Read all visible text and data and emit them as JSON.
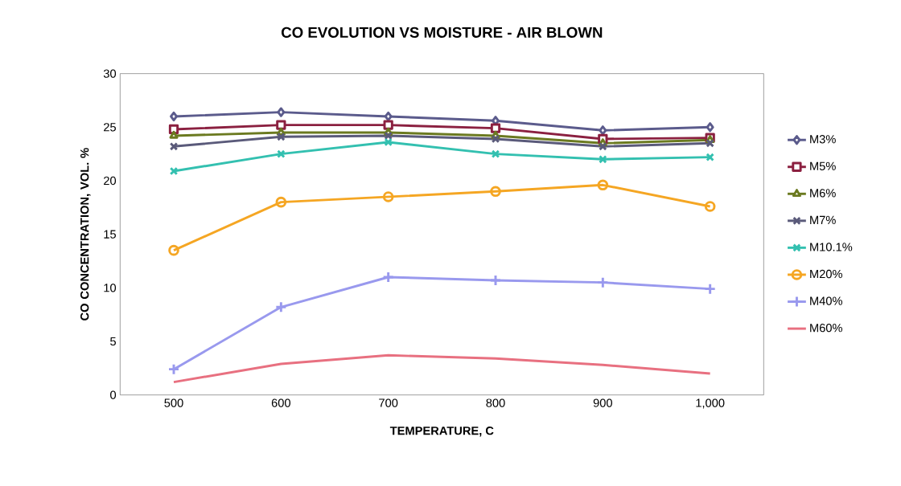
{
  "chart_data": {
    "type": "line",
    "title": "CO EVOLUTION VS MOISTURE - AIR BLOWN",
    "xlabel": "TEMPERATURE, C",
    "ylabel": "CO CONCENTRATION, VOL. %",
    "categories": [
      "500",
      "600",
      "700",
      "800",
      "900",
      "1,000"
    ],
    "ylim": [
      0,
      30
    ],
    "yticks": [
      0,
      5,
      10,
      15,
      20,
      25,
      30
    ],
    "grid": false,
    "legend": "right",
    "line_style": "solid",
    "series": [
      {
        "name": "M3%",
        "color": "#5b5b8c",
        "marker": "diamond",
        "values": [
          26.0,
          26.4,
          26.0,
          25.6,
          24.7,
          25.0
        ]
      },
      {
        "name": "M5%",
        "color": "#8b2040",
        "marker": "square",
        "values": [
          24.8,
          25.2,
          25.2,
          24.9,
          23.9,
          24.0
        ]
      },
      {
        "name": "M6%",
        "color": "#6b7a20",
        "marker": "triangle",
        "values": [
          24.2,
          24.5,
          24.5,
          24.2,
          23.5,
          23.8
        ]
      },
      {
        "name": "M7%",
        "color": "#5a5a7a",
        "marker": "cross",
        "values": [
          23.2,
          24.1,
          24.2,
          23.9,
          23.2,
          23.5
        ]
      },
      {
        "name": "M10.1%",
        "color": "#33c0b0",
        "marker": "cross",
        "values": [
          20.9,
          22.5,
          23.6,
          22.5,
          22.0,
          22.2
        ]
      },
      {
        "name": "M20%",
        "color": "#f5a623",
        "marker": "circle",
        "values": [
          13.5,
          18.0,
          18.5,
          19.0,
          19.6,
          17.6
        ]
      },
      {
        "name": "M40%",
        "color": "#9999ee",
        "marker": "plus",
        "values": [
          2.4,
          8.2,
          11.0,
          10.7,
          10.5,
          9.9
        ]
      },
      {
        "name": "M60%",
        "color": "#e87080",
        "marker": "none",
        "values": [
          1.2,
          2.9,
          3.7,
          3.4,
          2.8,
          2.0
        ]
      }
    ]
  }
}
